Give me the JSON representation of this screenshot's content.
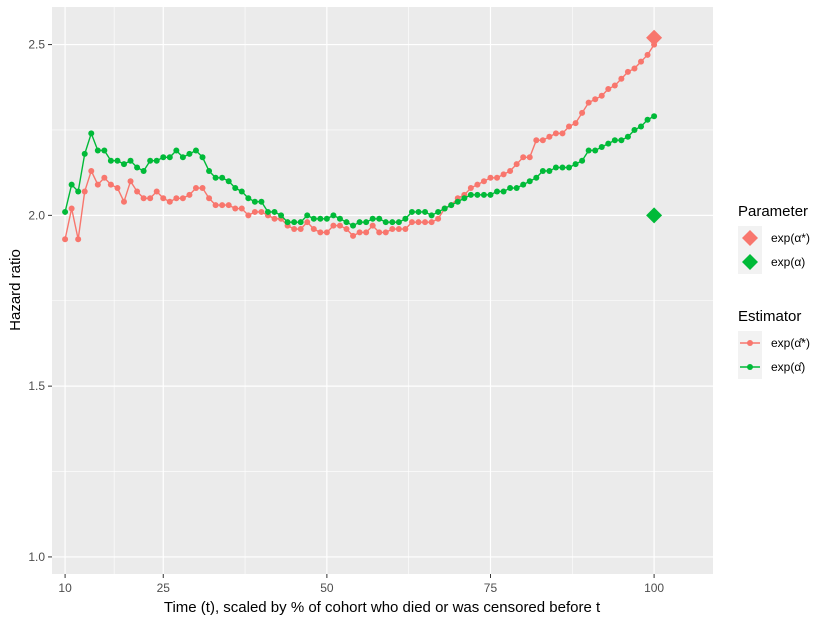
{
  "chart_data": {
    "type": "line",
    "xlabel": "Time (t), scaled by % of cohort who died or was censored before t",
    "ylabel": "Hazard ratio",
    "xlim": [
      8,
      109
    ],
    "ylim": [
      0.95,
      2.61
    ],
    "x_ticks": [
      10,
      25,
      50,
      75,
      100
    ],
    "x_tick_labels": [
      "10",
      "25",
      "50",
      "75",
      "100"
    ],
    "y_ticks": [
      1.0,
      1.5,
      2.0,
      2.5
    ],
    "y_tick_labels": [
      "1.0",
      "1.5",
      "2.0",
      "2.5"
    ],
    "grid": true,
    "legend_position": "right",
    "legend_parameter": {
      "title": "Parameter",
      "entries": [
        {
          "label": "exp(α*)",
          "color": "#F8766D"
        },
        {
          "label": "exp(α)",
          "color": "#00BA38"
        }
      ]
    },
    "legend_estimator": {
      "title": "Estimator",
      "entries": [
        {
          "label": "exp(α̂*)",
          "color": "#F8766D"
        },
        {
          "label": "exp(α̂)",
          "color": "#00BA38"
        }
      ]
    },
    "series": [
      {
        "color": "#F8766D",
        "x": [
          10,
          11,
          12,
          13,
          14,
          15,
          16,
          17,
          18,
          19,
          20,
          21,
          22,
          23,
          24,
          25,
          26,
          27,
          28,
          29,
          30,
          31,
          32,
          33,
          34,
          35,
          36,
          37,
          38,
          39,
          40,
          41,
          42,
          43,
          44,
          45,
          46,
          47,
          48,
          49,
          50,
          51,
          52,
          53,
          54,
          55,
          56,
          57,
          58,
          59,
          60,
          61,
          62,
          63,
          64,
          65,
          66,
          67,
          68,
          69,
          70,
          71,
          72,
          73,
          74,
          75,
          76,
          77,
          78,
          79,
          80,
          81,
          82,
          83,
          84,
          85,
          86,
          87,
          88,
          89,
          90,
          91,
          92,
          93,
          94,
          95,
          96,
          97,
          98,
          99,
          100
        ],
        "y": [
          1.93,
          2.02,
          1.93,
          2.07,
          2.13,
          2.09,
          2.11,
          2.09,
          2.08,
          2.04,
          2.1,
          2.07,
          2.05,
          2.05,
          2.07,
          2.05,
          2.04,
          2.05,
          2.05,
          2.06,
          2.08,
          2.08,
          2.05,
          2.03,
          2.03,
          2.03,
          2.02,
          2.02,
          2.0,
          2.01,
          2.01,
          2.0,
          1.99,
          1.99,
          1.97,
          1.96,
          1.96,
          1.98,
          1.96,
          1.95,
          1.95,
          1.97,
          1.97,
          1.96,
          1.94,
          1.95,
          1.95,
          1.97,
          1.95,
          1.95,
          1.96,
          1.96,
          1.96,
          1.98,
          1.98,
          1.98,
          1.98,
          1.99,
          2.02,
          2.03,
          2.05,
          2.06,
          2.08,
          2.09,
          2.1,
          2.11,
          2.11,
          2.12,
          2.13,
          2.15,
          2.17,
          2.17,
          2.22,
          2.22,
          2.23,
          2.24,
          2.24,
          2.26,
          2.27,
          2.3,
          2.33,
          2.34,
          2.35,
          2.37,
          2.38,
          2.4,
          2.42,
          2.43,
          2.45,
          2.47,
          2.5
        ]
      },
      {
        "color": "#00BA38",
        "x": [
          10,
          11,
          12,
          13,
          14,
          15,
          16,
          17,
          18,
          19,
          20,
          21,
          22,
          23,
          24,
          25,
          26,
          27,
          28,
          29,
          30,
          31,
          32,
          33,
          34,
          35,
          36,
          37,
          38,
          39,
          40,
          41,
          42,
          43,
          44,
          45,
          46,
          47,
          48,
          49,
          50,
          51,
          52,
          53,
          54,
          55,
          56,
          57,
          58,
          59,
          60,
          61,
          62,
          63,
          64,
          65,
          66,
          67,
          68,
          69,
          70,
          71,
          72,
          73,
          74,
          75,
          76,
          77,
          78,
          79,
          80,
          81,
          82,
          83,
          84,
          85,
          86,
          87,
          88,
          89,
          90,
          91,
          92,
          93,
          94,
          95,
          96,
          97,
          98,
          99,
          100
        ],
        "y": [
          2.01,
          2.09,
          2.07,
          2.18,
          2.24,
          2.19,
          2.19,
          2.16,
          2.16,
          2.15,
          2.16,
          2.14,
          2.13,
          2.16,
          2.16,
          2.17,
          2.17,
          2.19,
          2.17,
          2.18,
          2.19,
          2.17,
          2.13,
          2.11,
          2.11,
          2.1,
          2.08,
          2.07,
          2.05,
          2.04,
          2.04,
          2.01,
          2.01,
          2.0,
          1.98,
          1.98,
          1.98,
          2.0,
          1.99,
          1.99,
          1.99,
          2.0,
          1.99,
          1.98,
          1.97,
          1.98,
          1.98,
          1.99,
          1.99,
          1.98,
          1.98,
          1.98,
          1.99,
          2.01,
          2.01,
          2.01,
          2.0,
          2.01,
          2.02,
          2.03,
          2.04,
          2.05,
          2.06,
          2.06,
          2.06,
          2.06,
          2.07,
          2.07,
          2.08,
          2.08,
          2.09,
          2.1,
          2.11,
          2.13,
          2.13,
          2.14,
          2.14,
          2.14,
          2.15,
          2.16,
          2.19,
          2.19,
          2.2,
          2.21,
          2.22,
          2.22,
          2.23,
          2.25,
          2.26,
          2.28,
          2.29
        ]
      }
    ],
    "parameters": [
      {
        "x": 100,
        "y": 2.52,
        "color": "#F8766D"
      },
      {
        "x": 100,
        "y": 2.0,
        "color": "#00BA38"
      }
    ]
  }
}
